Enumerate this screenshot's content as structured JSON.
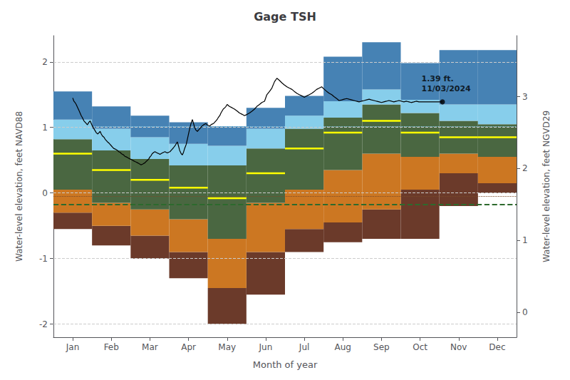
{
  "chart_data": {
    "type": "band",
    "title": "Gage TSH",
    "xlabel": "Month of year",
    "ylabel": "Water-level elevation, feet NAVD88",
    "y2label": "Water-level elevation, feet NGVD29",
    "xlim": [
      0.5,
      12.5
    ],
    "xticks": [
      {
        "value": 1,
        "label": "Jan"
      },
      {
        "value": 2,
        "label": "Feb"
      },
      {
        "value": 3,
        "label": "Mar"
      },
      {
        "value": 4,
        "label": "Apr"
      },
      {
        "value": 5,
        "label": "May"
      },
      {
        "value": 6,
        "label": "Jun"
      },
      {
        "value": 7,
        "label": "Jul"
      },
      {
        "value": 8,
        "label": "Aug"
      },
      {
        "value": 9,
        "label": "Sep"
      },
      {
        "value": 10,
        "label": "Oct"
      },
      {
        "value": 11,
        "label": "Nov"
      },
      {
        "value": 12,
        "label": "Dec"
      }
    ],
    "ylim": [
      -2.2,
      2.4
    ],
    "yticks": [
      -2,
      -1,
      0,
      1,
      2
    ],
    "y2lim": [
      -0.35,
      3.85
    ],
    "y2ticks": [
      0,
      1,
      2,
      3
    ],
    "grid": true,
    "series": [
      {
        "type": "band",
        "color": "#6B3A2A",
        "low": [
          -0.55,
          -0.8,
          -1.0,
          -1.3,
          -2.0,
          -1.55,
          -0.9,
          -0.75,
          -0.7,
          -0.7,
          -0.2,
          0.0
        ],
        "high": [
          -0.3,
          -0.5,
          -0.65,
          -0.9,
          -1.45,
          -0.9,
          -0.55,
          -0.45,
          -0.25,
          0.05,
          0.3,
          0.15
        ]
      },
      {
        "type": "band",
        "color": "#CC7722",
        "low": [
          -0.3,
          -0.5,
          -0.65,
          -0.9,
          -1.45,
          -0.9,
          -0.55,
          -0.45,
          -0.25,
          0.05,
          0.3,
          0.15
        ],
        "high": [
          0.05,
          -0.15,
          -0.25,
          -0.4,
          -0.7,
          -0.15,
          0.05,
          0.35,
          0.6,
          0.55,
          0.6,
          0.55
        ]
      },
      {
        "type": "band",
        "color": "#4A6741",
        "low": [
          0.05,
          -0.15,
          -0.25,
          -0.4,
          -0.7,
          -0.15,
          0.05,
          0.35,
          0.6,
          0.55,
          0.6,
          0.55
        ],
        "high": [
          0.82,
          0.65,
          0.52,
          0.42,
          0.42,
          0.68,
          0.98,
          1.15,
          1.35,
          1.22,
          1.1,
          1.05
        ]
      },
      {
        "type": "band",
        "color": "#87CEEB",
        "low": [
          0.82,
          0.65,
          0.52,
          0.42,
          0.42,
          0.68,
          0.98,
          1.15,
          1.35,
          1.22,
          1.1,
          1.05
        ],
        "high": [
          1.12,
          0.98,
          0.85,
          0.75,
          0.72,
          0.98,
          1.18,
          1.4,
          1.58,
          1.42,
          1.35,
          1.35
        ]
      },
      {
        "type": "band",
        "color": "#4682B4",
        "low": [
          1.12,
          0.98,
          0.85,
          0.75,
          0.72,
          0.98,
          1.18,
          1.4,
          1.58,
          1.42,
          1.35,
          1.35
        ],
        "high": [
          1.55,
          1.32,
          1.18,
          1.08,
          1.02,
          1.3,
          1.48,
          2.08,
          2.3,
          1.98,
          2.18,
          2.18
        ]
      },
      {
        "type": "median",
        "color": "#FFFF00",
        "values": [
          0.6,
          0.35,
          0.2,
          0.08,
          -0.08,
          0.3,
          0.68,
          0.92,
          1.1,
          0.92,
          0.85,
          0.85
        ]
      },
      {
        "type": "line",
        "color": "#000000",
        "x": [
          1.0,
          1.03,
          1.06,
          1.09,
          1.13,
          1.16,
          1.19,
          1.22,
          1.25,
          1.29,
          1.32,
          1.35,
          1.38,
          1.42,
          1.45,
          1.48,
          1.51,
          1.55,
          1.58,
          1.61,
          1.65,
          1.68,
          1.71,
          1.74,
          1.77,
          1.81,
          1.84,
          1.87,
          1.9,
          1.94,
          1.97,
          2.0,
          2.03,
          2.06,
          2.1,
          2.13,
          2.16,
          2.19,
          2.23,
          2.26,
          2.29,
          2.32,
          2.35,
          2.39,
          2.42,
          2.45,
          2.48,
          2.52,
          2.55,
          2.58,
          2.61,
          2.65,
          2.68,
          2.71,
          2.74,
          2.77,
          2.81,
          2.84,
          2.87,
          2.9,
          2.94,
          2.97,
          3.0,
          3.03,
          3.06,
          3.1,
          3.13,
          3.16,
          3.19,
          3.23,
          3.26,
          3.29,
          3.32,
          3.35,
          3.39,
          3.42,
          3.45,
          3.48,
          3.52,
          3.55,
          3.58,
          3.61,
          3.65,
          3.68,
          3.71,
          3.74,
          3.77,
          3.81,
          3.84,
          3.87,
          3.9,
          3.94,
          3.97,
          4.0,
          4.03,
          4.06,
          4.1,
          4.13,
          4.16,
          4.19,
          4.23,
          4.26,
          4.29,
          4.32,
          4.35,
          4.39,
          4.42,
          4.45,
          4.48,
          4.52,
          4.55,
          4.58,
          4.61,
          4.65,
          4.68,
          4.71,
          4.74,
          4.77,
          4.81,
          4.84,
          4.87,
          4.9,
          4.94,
          4.97,
          5.0,
          5.06,
          5.13,
          5.19,
          5.26,
          5.32,
          5.39,
          5.45,
          5.52,
          5.58,
          5.65,
          5.71,
          5.77,
          5.84,
          5.9,
          5.97,
          6.03,
          6.1,
          6.16,
          6.23,
          6.29,
          6.35,
          6.42,
          6.48,
          6.55,
          6.61,
          6.68,
          6.74,
          6.81,
          6.87,
          6.94,
          7.0,
          7.06,
          7.13,
          7.19,
          7.26,
          7.32,
          7.39,
          7.45,
          7.52,
          7.58,
          7.65,
          7.71,
          7.77,
          7.84,
          7.9,
          7.97,
          8.03,
          8.1,
          8.16,
          8.23,
          8.29,
          8.35,
          8.42,
          8.48,
          8.55,
          8.61,
          8.68,
          8.74,
          8.81,
          8.87,
          8.94,
          9.0,
          9.06,
          9.13,
          9.19,
          9.26,
          9.32,
          9.39,
          9.45,
          9.52,
          9.58,
          9.65,
          9.71,
          9.77,
          9.84,
          9.9,
          9.97,
          10.03,
          10.1,
          10.16,
          10.23,
          10.29,
          10.35,
          10.42,
          10.48,
          10.55,
          10.58
        ],
        "values": [
          1.45,
          1.4,
          1.38,
          1.35,
          1.3,
          1.26,
          1.22,
          1.18,
          1.15,
          1.1,
          1.08,
          1.06,
          1.04,
          1.08,
          1.1,
          1.06,
          1.02,
          0.98,
          0.95,
          0.92,
          0.9,
          0.92,
          0.94,
          0.9,
          0.87,
          0.85,
          0.82,
          0.8,
          0.78,
          0.76,
          0.74,
          0.72,
          0.7,
          0.68,
          0.67,
          0.66,
          0.65,
          0.63,
          0.62,
          0.6,
          0.59,
          0.58,
          0.56,
          0.55,
          0.54,
          0.53,
          0.52,
          0.51,
          0.5,
          0.49,
          0.48,
          0.47,
          0.46,
          0.45,
          0.44,
          0.43,
          0.44,
          0.45,
          0.46,
          0.48,
          0.5,
          0.52,
          0.55,
          0.57,
          0.6,
          0.62,
          0.63,
          0.62,
          0.61,
          0.6,
          0.59,
          0.6,
          0.61,
          0.62,
          0.63,
          0.62,
          0.61,
          0.62,
          0.63,
          0.65,
          0.67,
          0.69,
          0.72,
          0.75,
          0.78,
          0.72,
          0.65,
          0.6,
          0.58,
          0.62,
          0.68,
          0.74,
          0.82,
          0.9,
          0.98,
          1.05,
          1.12,
          1.06,
          1.0,
          0.96,
          0.94,
          0.96,
          0.98,
          1.0,
          1.02,
          1.04,
          1.05,
          1.06,
          1.04,
          1.03,
          1.02,
          1.04,
          1.05,
          1.06,
          1.08,
          1.1,
          1.12,
          1.15,
          1.18,
          1.22,
          1.25,
          1.28,
          1.3,
          1.32,
          1.35,
          1.32,
          1.3,
          1.28,
          1.25,
          1.22,
          1.2,
          1.18,
          1.2,
          1.22,
          1.25,
          1.28,
          1.32,
          1.35,
          1.38,
          1.4,
          1.5,
          1.55,
          1.6,
          1.7,
          1.75,
          1.72,
          1.68,
          1.65,
          1.62,
          1.6,
          1.58,
          1.55,
          1.52,
          1.5,
          1.48,
          1.46,
          1.48,
          1.5,
          1.52,
          1.55,
          1.58,
          1.6,
          1.62,
          1.58,
          1.55,
          1.52,
          1.5,
          1.47,
          1.44,
          1.41,
          1.42,
          1.43,
          1.44,
          1.43,
          1.42,
          1.41,
          1.4,
          1.39,
          1.4,
          1.41,
          1.42,
          1.43,
          1.42,
          1.41,
          1.4,
          1.39,
          1.38,
          1.39,
          1.4,
          1.41,
          1.4,
          1.39,
          1.4,
          1.41,
          1.4,
          1.39,
          1.4,
          1.39,
          1.38,
          1.39,
          1.4,
          1.39,
          1.39,
          1.39,
          1.39,
          1.39,
          1.39,
          1.39,
          1.39,
          1.39,
          1.39,
          1.39
        ]
      }
    ],
    "reference_lines": [
      {
        "y": -0.18,
        "color": "#2D6A2D",
        "line_style": "dashed"
      },
      {
        "y": -0.05,
        "color": "#7B4B2A",
        "line_style": "dotted"
      },
      {
        "y": 1.02,
        "color": "#87CEEB",
        "line_style": "dotted"
      }
    ],
    "annotation": {
      "text": "1.39 ft.\n11/03/2024",
      "x": 10.58,
      "y": 1.39,
      "color": "#000000",
      "marker": "circle"
    }
  }
}
